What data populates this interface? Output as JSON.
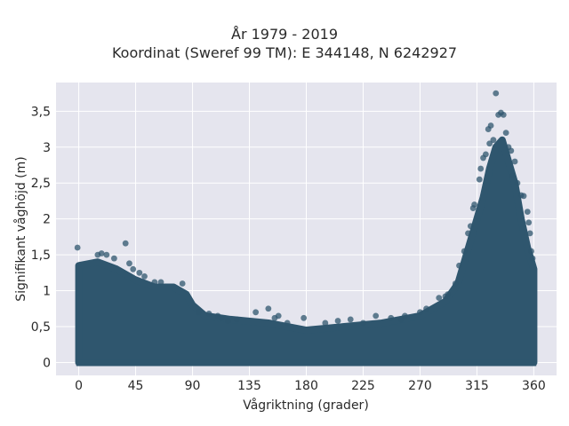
{
  "chart_data": {
    "type": "scatter",
    "title": "År 1979 - 2019",
    "subtitle": "Koordinat (Sweref 99 TM): E 344148, N 6242927",
    "xlabel": "Vågriktning (grader)",
    "ylabel": "Signifikant våghöjd (m)",
    "xlim": [
      -18,
      378
    ],
    "ylim": [
      -0.18,
      3.9
    ],
    "x_ticks": [
      0,
      45,
      90,
      135,
      180,
      225,
      270,
      315,
      360
    ],
    "x_tick_labels": [
      "0",
      "45",
      "90",
      "135",
      "180",
      "225",
      "270",
      "315",
      "360"
    ],
    "y_ticks": [
      0,
      0.5,
      1,
      1.5,
      2,
      2.5,
      3,
      3.5
    ],
    "y_tick_labels": [
      "0",
      "0,5",
      "1",
      "1,5",
      "2",
      "2,5",
      "3",
      "3,5"
    ],
    "grid": true,
    "marker_color": "#2f566e",
    "background_color": "#e5e5ee",
    "envelope": {
      "x": [
        0,
        15,
        30,
        45,
        60,
        75,
        85,
        90,
        100,
        120,
        150,
        180,
        210,
        240,
        270,
        290,
        300,
        310,
        320,
        325,
        330,
        335,
        340,
        345,
        350,
        355,
        360
      ],
      "y_max": [
        1.35,
        1.4,
        1.3,
        1.15,
        1.05,
        1.05,
        0.95,
        0.8,
        0.65,
        0.6,
        0.55,
        0.45,
        0.5,
        0.55,
        0.65,
        0.85,
        1.1,
        1.7,
        2.3,
        2.7,
        3.0,
        3.1,
        2.8,
        2.5,
        2.0,
        1.6,
        1.3
      ]
    },
    "outliers": [
      {
        "x": -1,
        "y": 1.6
      },
      {
        "x": 15,
        "y": 1.5
      },
      {
        "x": 18,
        "y": 1.52
      },
      {
        "x": 22,
        "y": 1.5
      },
      {
        "x": 28,
        "y": 1.45
      },
      {
        "x": 37,
        "y": 1.66
      },
      {
        "x": 40,
        "y": 1.38
      },
      {
        "x": 43,
        "y": 1.3
      },
      {
        "x": 48,
        "y": 1.25
      },
      {
        "x": 52,
        "y": 1.2
      },
      {
        "x": 60,
        "y": 1.12
      },
      {
        "x": 65,
        "y": 1.12
      },
      {
        "x": 82,
        "y": 1.1
      },
      {
        "x": 95,
        "y": 0.7
      },
      {
        "x": 103,
        "y": 0.68
      },
      {
        "x": 110,
        "y": 0.65
      },
      {
        "x": 113,
        "y": 0.62
      },
      {
        "x": 118,
        "y": 0.58
      },
      {
        "x": 125,
        "y": 0.6
      },
      {
        "x": 140,
        "y": 0.7
      },
      {
        "x": 150,
        "y": 0.75
      },
      {
        "x": 155,
        "y": 0.62
      },
      {
        "x": 158,
        "y": 0.65
      },
      {
        "x": 165,
        "y": 0.55
      },
      {
        "x": 178,
        "y": 0.62
      },
      {
        "x": 195,
        "y": 0.55
      },
      {
        "x": 205,
        "y": 0.58
      },
      {
        "x": 215,
        "y": 0.6
      },
      {
        "x": 225,
        "y": 0.55
      },
      {
        "x": 235,
        "y": 0.65
      },
      {
        "x": 247,
        "y": 0.62
      },
      {
        "x": 255,
        "y": 0.6
      },
      {
        "x": 258,
        "y": 0.65
      },
      {
        "x": 270,
        "y": 0.7
      },
      {
        "x": 275,
        "y": 0.75
      },
      {
        "x": 285,
        "y": 0.9
      },
      {
        "x": 290,
        "y": 0.92
      },
      {
        "x": 292,
        "y": 0.95
      },
      {
        "x": 298,
        "y": 1.1
      },
      {
        "x": 301,
        "y": 1.35
      },
      {
        "x": 305,
        "y": 1.55
      },
      {
        "x": 308,
        "y": 1.8
      },
      {
        "x": 310,
        "y": 1.9
      },
      {
        "x": 312,
        "y": 2.15
      },
      {
        "x": 313,
        "y": 2.2
      },
      {
        "x": 317,
        "y": 2.55
      },
      {
        "x": 318,
        "y": 2.7
      },
      {
        "x": 320,
        "y": 2.85
      },
      {
        "x": 322,
        "y": 2.9
      },
      {
        "x": 324,
        "y": 3.25
      },
      {
        "x": 325,
        "y": 3.05
      },
      {
        "x": 326,
        "y": 3.3
      },
      {
        "x": 328,
        "y": 3.1
      },
      {
        "x": 330,
        "y": 3.75
      },
      {
        "x": 332,
        "y": 3.45
      },
      {
        "x": 334,
        "y": 3.48
      },
      {
        "x": 336,
        "y": 3.45
      },
      {
        "x": 338,
        "y": 3.2
      },
      {
        "x": 340,
        "y": 3.0
      },
      {
        "x": 342,
        "y": 2.95
      },
      {
        "x": 343,
        "y": 2.6
      },
      {
        "x": 345,
        "y": 2.8
      },
      {
        "x": 347,
        "y": 2.5
      },
      {
        "x": 350,
        "y": 2.33
      },
      {
        "x": 352,
        "y": 2.32
      },
      {
        "x": 355,
        "y": 2.1
      },
      {
        "x": 356,
        "y": 1.95
      },
      {
        "x": 357,
        "y": 1.8
      },
      {
        "x": 358,
        "y": 1.55
      },
      {
        "x": 359,
        "y": 1.45
      }
    ]
  }
}
